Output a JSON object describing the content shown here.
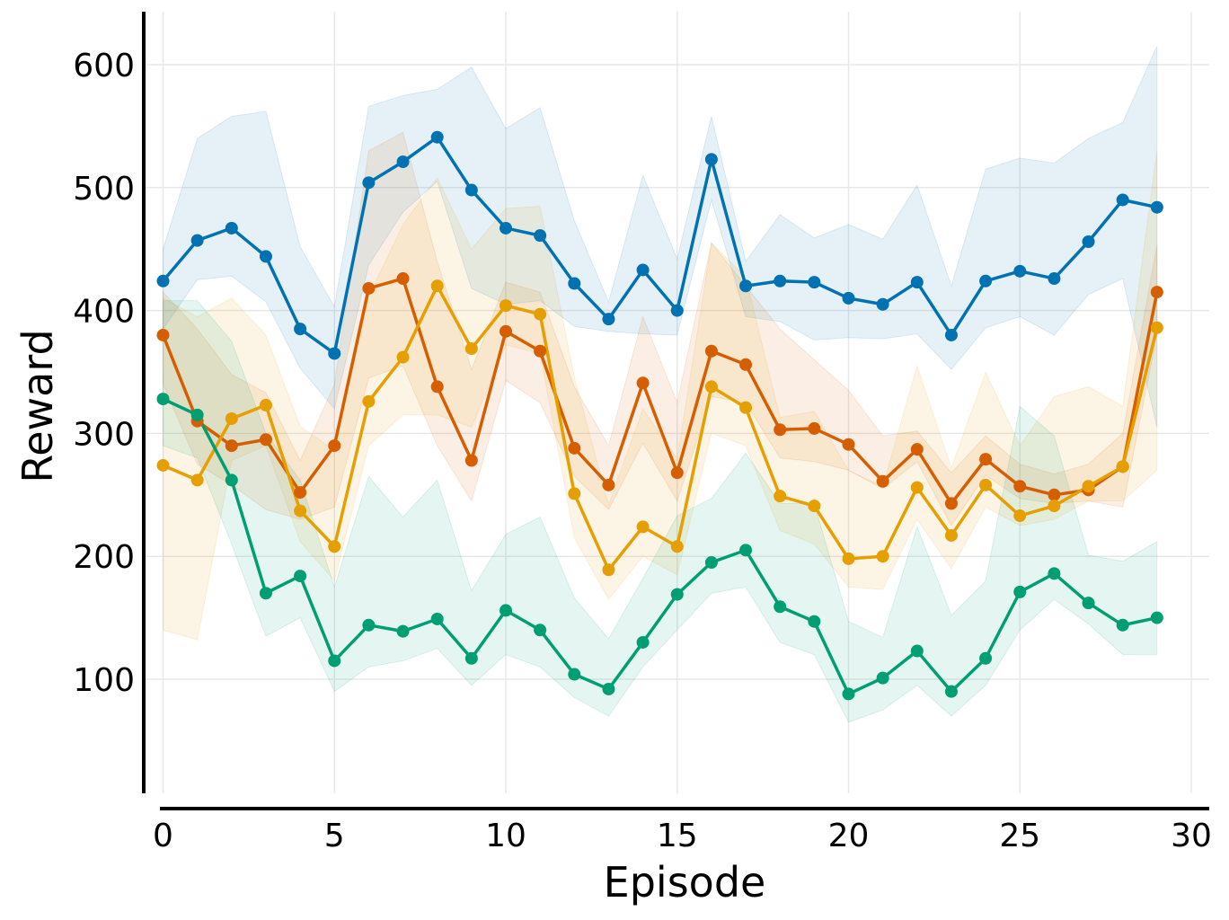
{
  "chart_data": {
    "type": "line",
    "title": "",
    "xlabel": "Episode",
    "ylabel": "Reward",
    "xlim": [
      -0.5,
      30.5
    ],
    "ylim": [
      10,
      645
    ],
    "grid": true,
    "legend": "none",
    "x_ticks": [
      0,
      5,
      10,
      15,
      20,
      25,
      30
    ],
    "y_ticks": [
      100,
      200,
      300,
      400,
      500,
      600
    ],
    "x_tick_labels": [
      "0",
      "5",
      "10",
      "15",
      "20",
      "25",
      "30"
    ],
    "y_tick_labels": [
      "100",
      "200",
      "300",
      "400",
      "500",
      "600"
    ],
    "x": [
      0,
      1,
      2,
      3,
      4,
      5,
      6,
      7,
      8,
      9,
      10,
      11,
      12,
      13,
      14,
      15,
      16,
      17,
      18,
      19,
      20,
      21,
      22,
      23,
      24,
      25,
      26,
      27,
      28,
      29
    ],
    "series": [
      {
        "name": "blue",
        "color": "#0072b2",
        "values": [
          424,
          457,
          467,
          444,
          385,
          365,
          504,
          521,
          541,
          498,
          467,
          461,
          422,
          393,
          433,
          400,
          523,
          420,
          424,
          423,
          410,
          405,
          423,
          380,
          424,
          432,
          426,
          456,
          490,
          484
        ],
        "lower": [
          385,
          425,
          428,
          407,
          353,
          320,
          437,
          480,
          505,
          418,
          405,
          408,
          387,
          383,
          381,
          380,
          490,
          395,
          391,
          376,
          378,
          377,
          381,
          352,
          386,
          395,
          380,
          413,
          426,
          305
        ],
        "upper": [
          450,
          540,
          558,
          562,
          452,
          403,
          566,
          575,
          580,
          598,
          548,
          565,
          473,
          407,
          510,
          442,
          558,
          440,
          478,
          459,
          470,
          458,
          502,
          420,
          515,
          524,
          520,
          540,
          553,
          615
        ]
      },
      {
        "name": "orange",
        "color": "#d55e00",
        "values": [
          380,
          310,
          290,
          295,
          252,
          290,
          418,
          426,
          338,
          278,
          383,
          367,
          288,
          258,
          341,
          268,
          367,
          356,
          303,
          304,
          291,
          261,
          287,
          243,
          279,
          257,
          250,
          254,
          273,
          415
        ],
        "lower": [
          340,
          275,
          258,
          238,
          230,
          240,
          345,
          355,
          290,
          245,
          343,
          325,
          265,
          238,
          292,
          245,
          330,
          325,
          280,
          277,
          270,
          255,
          277,
          225,
          266,
          247,
          243,
          245,
          240,
          380
        ],
        "upper": [
          415,
          385,
          348,
          333,
          278,
          340,
          530,
          545,
          440,
          352,
          423,
          415,
          338,
          290,
          395,
          325,
          455,
          420,
          385,
          360,
          335,
          298,
          302,
          268,
          298,
          275,
          267,
          275,
          300,
          453
        ]
      },
      {
        "name": "amber",
        "color": "#e69f00",
        "values": [
          274,
          262,
          312,
          323,
          237,
          208,
          326,
          362,
          420,
          369,
          404,
          397,
          251,
          189,
          224,
          208,
          338,
          321,
          249,
          241,
          198,
          200,
          256,
          217,
          258,
          233,
          241,
          257,
          273,
          386
        ],
        "lower": [
          140,
          132,
          278,
          290,
          212,
          180,
          290,
          315,
          315,
          305,
          372,
          365,
          215,
          165,
          200,
          185,
          300,
          290,
          221,
          210,
          175,
          173,
          230,
          190,
          240,
          225,
          230,
          245,
          245,
          270
        ],
        "upper": [
          410,
          395,
          410,
          380,
          306,
          286,
          412,
          470,
          508,
          450,
          483,
          485,
          346,
          242,
          320,
          280,
          455,
          427,
          313,
          318,
          270,
          257,
          355,
          272,
          350,
          290,
          330,
          338,
          322,
          530
        ]
      },
      {
        "name": "green",
        "color": "#009e73",
        "values": [
          328,
          315,
          262,
          170,
          184,
          115,
          144,
          139,
          149,
          117,
          156,
          140,
          104,
          92,
          130,
          169,
          195,
          205,
          159,
          147,
          88,
          101,
          123,
          90,
          117,
          171,
          186,
          162,
          144,
          150
        ],
        "lower": [
          290,
          280,
          210,
          135,
          150,
          90,
          110,
          115,
          125,
          95,
          120,
          110,
          85,
          70,
          110,
          140,
          170,
          175,
          130,
          120,
          65,
          75,
          95,
          70,
          95,
          140,
          165,
          145,
          120,
          120
        ],
        "upper": [
          408,
          408,
          375,
          300,
          262,
          175,
          265,
          232,
          262,
          172,
          218,
          232,
          166,
          133,
          182,
          233,
          247,
          284,
          243,
          243,
          147,
          134,
          224,
          152,
          180,
          322,
          298,
          201,
          196,
          212
        ]
      }
    ]
  }
}
